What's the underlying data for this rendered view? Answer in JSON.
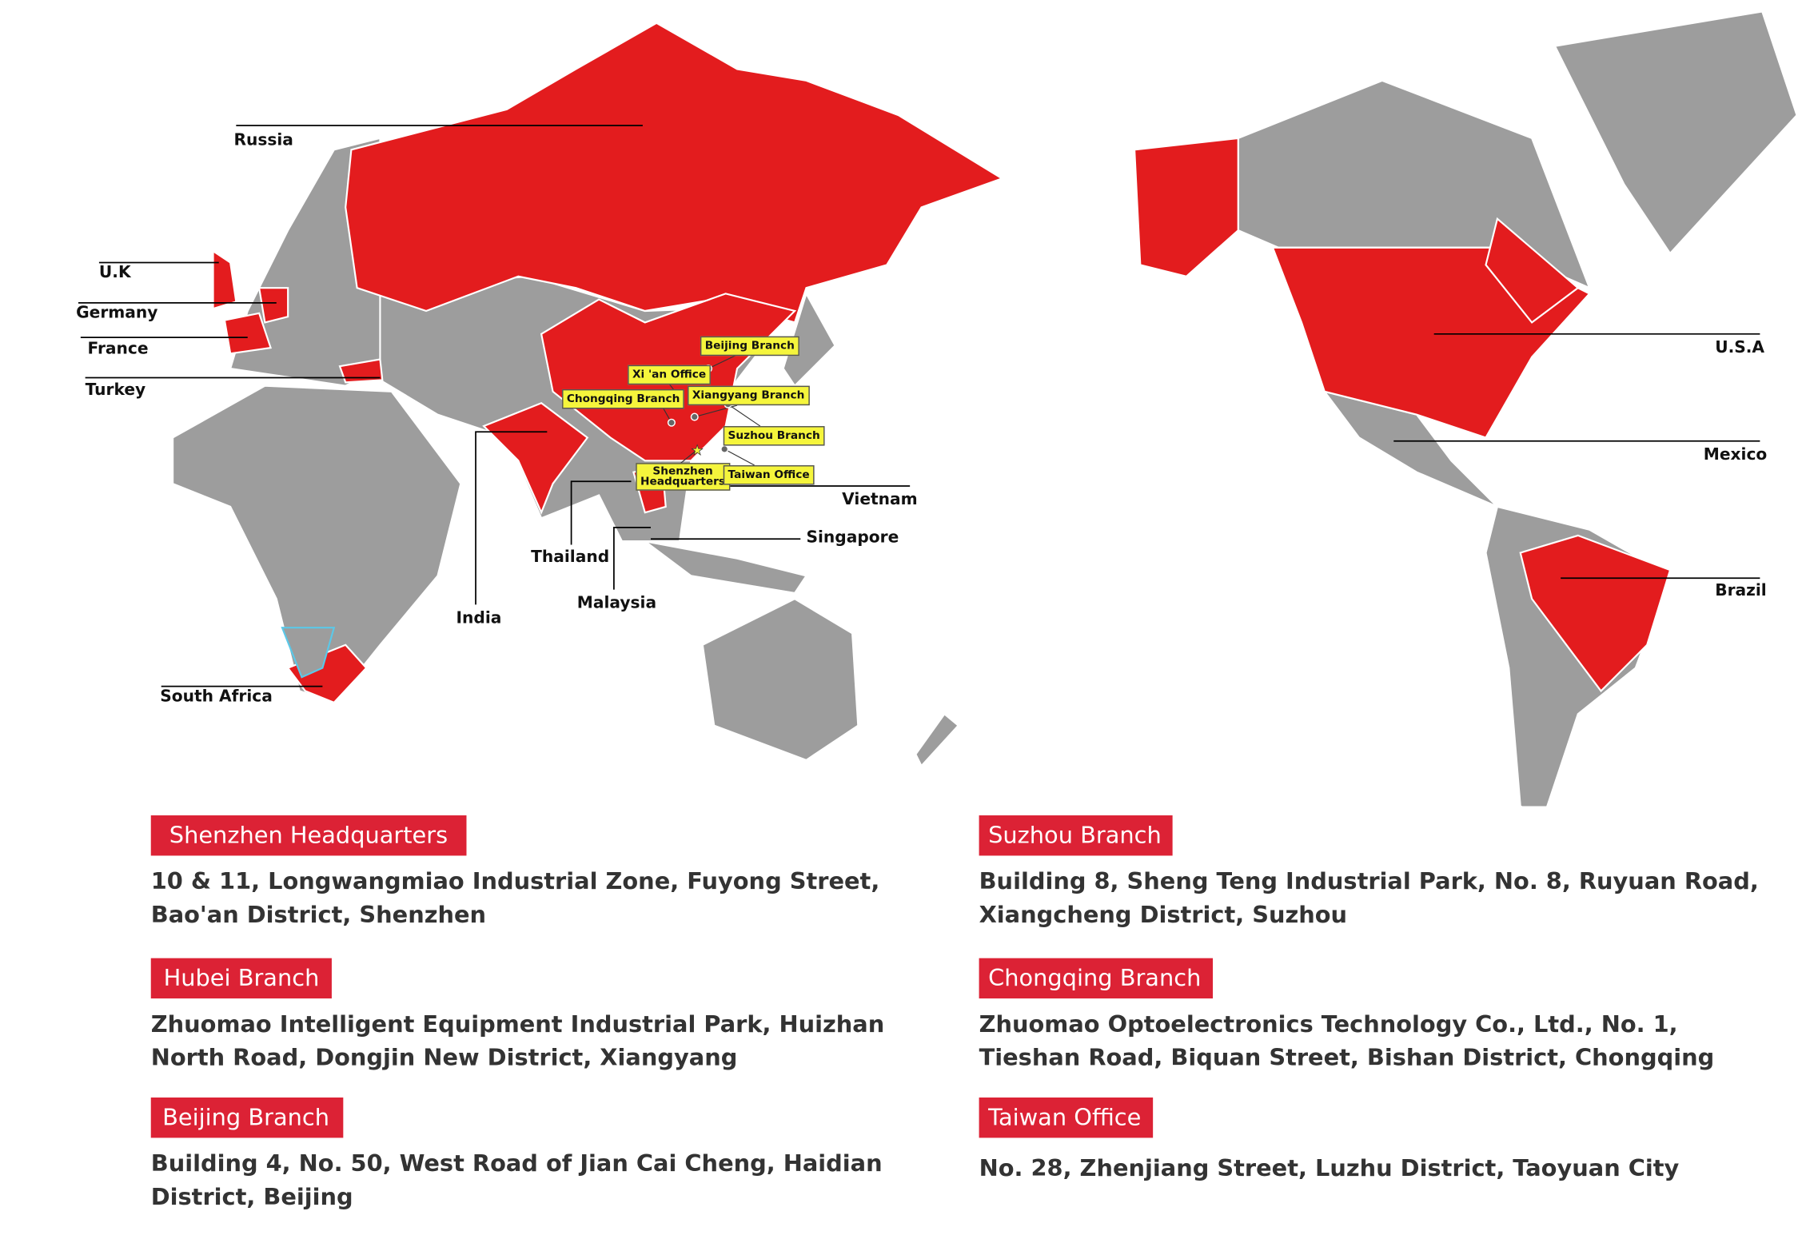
{
  "colors": {
    "highlight": "#e31c1e",
    "land": "#9d9d9d",
    "callout": "#f5f53c",
    "tag": "#dc2235"
  },
  "countries": {
    "russia": "Russia",
    "uk": "U.K",
    "germany": "Germany",
    "france": "France",
    "turkey": "Turkey",
    "india": "India",
    "thailand": "Thailand",
    "malaysia": "Malaysia",
    "singapore": "Singapore",
    "vietnam": "Vietnam",
    "south_africa": "South Africa",
    "usa": "U.S.A",
    "mexico": "Mexico",
    "brazil": "Brazil"
  },
  "callouts": {
    "beijing": "Beijing Branch",
    "xian": "Xi 'an Office",
    "chongqing": "Chongqing Branch",
    "xiangyang": "Xiangyang Branch",
    "suzhou": "Suzhou Branch",
    "shenzhen_1": "Shenzhen",
    "shenzhen_2": "Headquarters",
    "taiwan": "Taiwan Office"
  },
  "offices": [
    {
      "name": "Shenzhen Headquarters",
      "address": "10 & 11, Longwangmiao Industrial Zone, Fuyong Street, Bao'an District, Shenzhen"
    },
    {
      "name": "Suzhou Branch",
      "address": "Building 8, Sheng Teng Industrial Park, No. 8, Ruyuan Road, Xiangcheng District, Suzhou"
    },
    {
      "name": "Hubei Branch",
      "address": "Zhuomao Intelligent Equipment Industrial Park, Huizhan North Road, Dongjin New District, Xiangyang"
    },
    {
      "name": "Chongqing Branch",
      "address": "Zhuomao Optoelectronics Technology Co., Ltd., No. 1, Tieshan Road, Biquan Street, Bishan District, Chongqing"
    },
    {
      "name": "Beijing Branch",
      "address": "Building 4, No. 50, West Road of Jian Cai Cheng, Haidian District, Beijing"
    },
    {
      "name": "Taiwan Office",
      "address": "No. 28, Zhenjiang Street, Luzhu District, Taoyuan City"
    }
  ]
}
